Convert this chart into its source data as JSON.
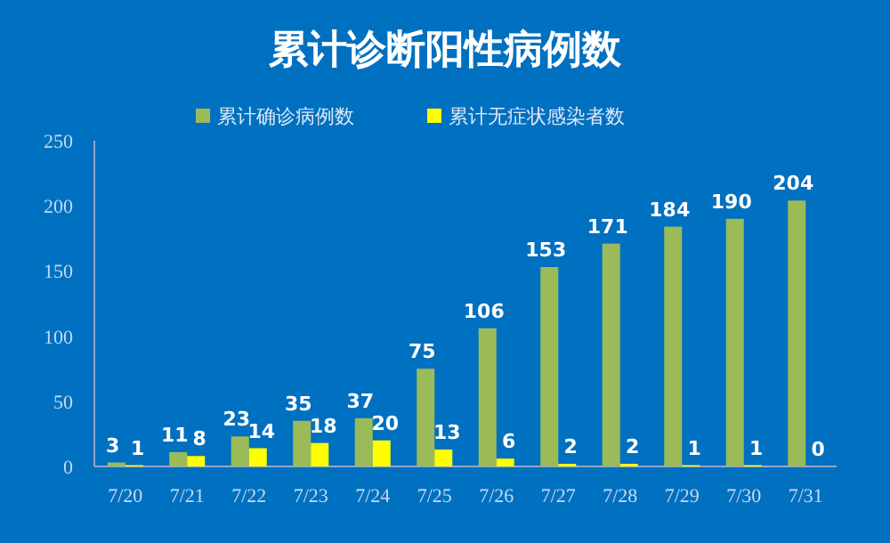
{
  "chart_data": {
    "type": "bar",
    "title": "累计诊断阳性病例数",
    "categories": [
      "7/20",
      "7/21",
      "7/22",
      "7/23",
      "7/24",
      "7/25",
      "7/26",
      "7/27",
      "7/28",
      "7/29",
      "7/30",
      "7/31"
    ],
    "series": [
      {
        "name": "累计确诊病例数",
        "color": "#9bbb59",
        "values": [
          3,
          11,
          23,
          35,
          37,
          75,
          106,
          153,
          171,
          184,
          190,
          204
        ]
      },
      {
        "name": "累计无症状感染者数",
        "color": "#ffff00",
        "values": [
          1,
          8,
          14,
          18,
          20,
          13,
          6,
          2,
          2,
          1,
          1,
          0
        ]
      }
    ],
    "ylim": [
      0,
      250
    ],
    "yticks": [
      0,
      50,
      100,
      150,
      200,
      250
    ],
    "data_labels": true,
    "legend": "top"
  }
}
